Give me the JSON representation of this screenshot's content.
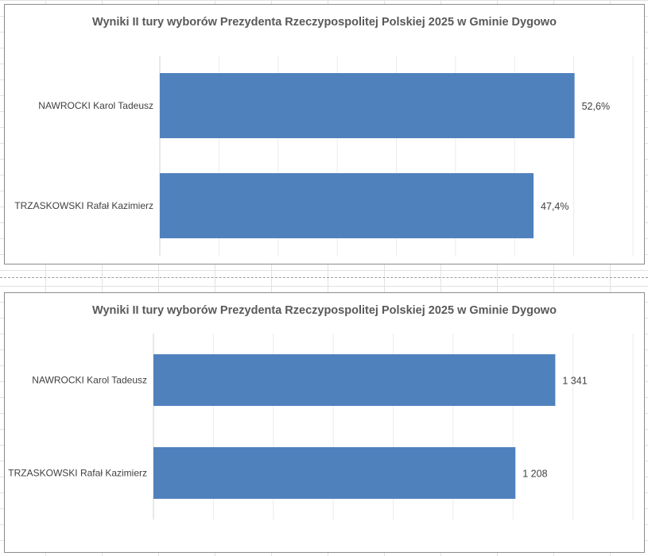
{
  "chart_data": [
    {
      "type": "bar",
      "orientation": "horizontal",
      "title": "Wyniki II tury wyborów Prezydenta Rzeczypospolitej Polskiej 2025 w Gminie Dygowo",
      "categories": [
        "NAWROCKI Karol Tadeusz",
        "TRZASKOWSKI Rafał Kazimierz"
      ],
      "values": [
        52.6,
        47.4
      ],
      "data_labels": [
        "52,6%",
        "47,4%"
      ],
      "xlim": [
        0,
        60
      ],
      "grid": true,
      "color": "#4f81bd"
    },
    {
      "type": "bar",
      "orientation": "horizontal",
      "title": "Wyniki II tury wyborów Prezydenta Rzeczypospolitej Polskiej 2025 w Gminie Dygowo",
      "categories": [
        "NAWROCKI Karol Tadeusz",
        "TRZASKOWSKI Rafał Kazimierz"
      ],
      "values": [
        1341,
        1208
      ],
      "data_labels": [
        "1 341",
        "1 208"
      ],
      "xlim": [
        0,
        1600
      ],
      "grid": true,
      "color": "#4f81bd"
    }
  ]
}
